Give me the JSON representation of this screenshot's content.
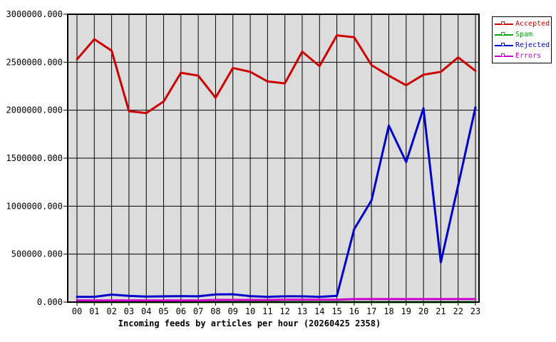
{
  "chart_data": {
    "type": "line",
    "title": "Incoming feeds by articles per hour (20260425 2358)",
    "xlabel": "",
    "ylabel": "",
    "ylim": [
      0,
      3000000
    ],
    "grid": true,
    "plot_bg": "#dcdcdc",
    "grid_color": "#000000",
    "legend_position": "outside-top-right",
    "categories": [
      "00",
      "01",
      "02",
      "03",
      "04",
      "05",
      "06",
      "07",
      "08",
      "09",
      "10",
      "11",
      "12",
      "13",
      "14",
      "15",
      "16",
      "17",
      "18",
      "19",
      "20",
      "21",
      "22",
      "23"
    ],
    "y_ticks": [
      "0.000",
      "500000.000",
      "1000000.000",
      "1500000.000",
      "2000000.000",
      "2500000.000",
      "3000000.000"
    ],
    "series": [
      {
        "name": "Accepted",
        "color": "#cc0000",
        "values": [
          2530000,
          2740000,
          2620000,
          1990000,
          1970000,
          2090000,
          2390000,
          2360000,
          2130000,
          2440000,
          2400000,
          2300000,
          2280000,
          2610000,
          2460000,
          2780000,
          2760000,
          2470000,
          2360000,
          2260000,
          2370000,
          2400000,
          2550000,
          2410000
        ]
      },
      {
        "name": "Spam",
        "color": "#00a800",
        "values": [
          0,
          0,
          0,
          0,
          0,
          0,
          0,
          0,
          0,
          0,
          0,
          0,
          0,
          0,
          0,
          0,
          0,
          0,
          0,
          0,
          0,
          0,
          0,
          0
        ]
      },
      {
        "name": "Rejected",
        "color": "#0000cc",
        "values": [
          55000,
          55000,
          78000,
          65000,
          58000,
          60000,
          62000,
          60000,
          80000,
          82000,
          62000,
          55000,
          60000,
          60000,
          55000,
          65000,
          760000,
          1060000,
          1840000,
          1460000,
          2020000,
          415000,
          1215000,
          2030000
        ]
      },
      {
        "name": "Errors",
        "color": "#cc00cc",
        "values": [
          18000,
          18000,
          18000,
          18000,
          18000,
          18000,
          18000,
          18000,
          22000,
          22000,
          22000,
          22000,
          25000,
          25000,
          25000,
          25000,
          32000,
          32000,
          32000,
          32000,
          32000,
          32000,
          32000,
          32000
        ]
      }
    ]
  }
}
